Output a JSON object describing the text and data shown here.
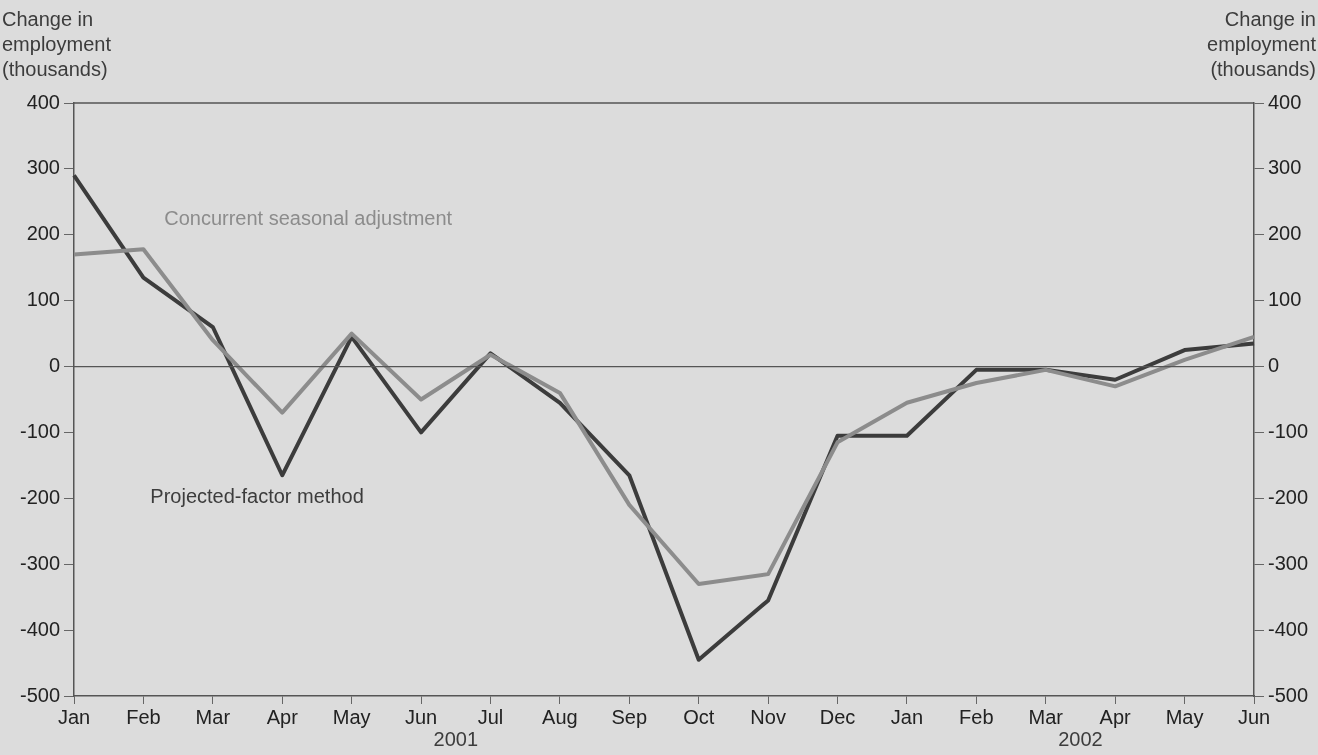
{
  "chart_data": {
    "type": "line",
    "ylabel": "Change in employment (thousands)",
    "y2label": "Change in employment (thousands)",
    "categories": [
      "Jan",
      "Feb",
      "Mar",
      "Apr",
      "May",
      "Jun",
      "Jul",
      "Aug",
      "Sep",
      "Oct",
      "Nov",
      "Dec",
      "Jan",
      "Feb",
      "Mar",
      "Apr",
      "May",
      "Jun"
    ],
    "series": [
      {
        "name": "Concurrent seasonal adjustment",
        "color": "#8c8c8c",
        "values": [
          170,
          178,
          40,
          -70,
          50,
          -50,
          18,
          -40,
          -210,
          -330,
          -315,
          -115,
          -55,
          -25,
          -5,
          -30,
          10,
          45
        ]
      },
      {
        "name": "Projected-factor method",
        "color": "#3c3c3c",
        "values": [
          290,
          135,
          60,
          -165,
          45,
          -100,
          20,
          -55,
          -165,
          -445,
          -355,
          -105,
          -105,
          -5,
          -5,
          -20,
          25,
          35
        ]
      }
    ],
    "ylim": [
      -500,
      400
    ],
    "yticks": [
      -500,
      -400,
      -300,
      -200,
      -100,
      0,
      100,
      200,
      300,
      400
    ],
    "y2lim": [
      -500,
      400
    ],
    "y2ticks": [
      -500,
      -400,
      -300,
      -200,
      -100,
      0,
      100,
      200,
      300,
      400
    ],
    "ref_lines": [
      {
        "axis": "y",
        "value": 0,
        "color": "#555555"
      }
    ],
    "annotations": [
      "2001",
      "2002"
    ],
    "grid": false,
    "legend": false,
    "marker": "none",
    "line_style": "solid"
  }
}
